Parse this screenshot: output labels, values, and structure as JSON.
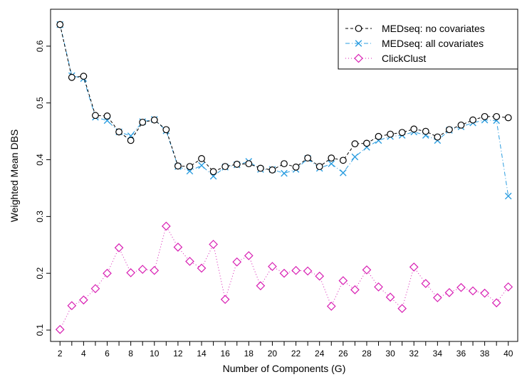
{
  "chart_data": {
    "type": "line",
    "title": "",
    "xlabel": "Number of Components (G)",
    "ylabel": "Weighted Mean DBS",
    "xlim": [
      1.2,
      40.8
    ],
    "ylim": [
      0.08,
      0.665
    ],
    "x_ticks": [
      2,
      3,
      4,
      5,
      6,
      7,
      8,
      9,
      10,
      11,
      12,
      13,
      14,
      15,
      16,
      17,
      18,
      19,
      20,
      21,
      22,
      23,
      24,
      25,
      26,
      27,
      28,
      29,
      30,
      31,
      32,
      33,
      34,
      35,
      36,
      37,
      38,
      39,
      40
    ],
    "x_tick_labels": [
      "2",
      "4",
      "6",
      "8",
      "10",
      "12",
      "14",
      "16",
      "18",
      "20",
      "22",
      "24",
      "26",
      "28",
      "30",
      "32",
      "34",
      "36",
      "38",
      "40"
    ],
    "y_ticks": [
      0.1,
      0.2,
      0.3,
      0.4,
      0.5,
      0.6
    ],
    "y_tick_labels": [
      "0.1",
      "0.2",
      "0.3",
      "0.4",
      "0.5",
      "0.6"
    ],
    "grid": false,
    "legend_position": "top-right",
    "x": [
      2,
      3,
      4,
      5,
      6,
      7,
      8,
      9,
      10,
      11,
      12,
      13,
      14,
      15,
      16,
      17,
      18,
      19,
      20,
      21,
      22,
      23,
      24,
      25,
      26,
      27,
      28,
      29,
      30,
      31,
      32,
      33,
      34,
      35,
      36,
      37,
      38,
      39,
      40
    ],
    "series": [
      {
        "name": "MEDseq: no covariates",
        "color": "#000000",
        "marker": "circle",
        "line": "dashed",
        "values": [
          0.638,
          0.545,
          0.547,
          0.478,
          0.477,
          0.449,
          0.434,
          0.466,
          0.47,
          0.453,
          0.389,
          0.388,
          0.402,
          0.379,
          0.388,
          0.392,
          0.393,
          0.385,
          0.382,
          0.393,
          0.387,
          0.403,
          0.388,
          0.403,
          0.399,
          0.428,
          0.429,
          0.441,
          0.445,
          0.448,
          0.454,
          0.45,
          0.44,
          0.453,
          0.461,
          0.47,
          0.476,
          0.476,
          0.474
        ]
      },
      {
        "name": "MEDseq: all covariates",
        "color": "#2b9de0",
        "marker": "cross",
        "line": "dashdot",
        "values": [
          0.638,
          0.548,
          0.543,
          0.475,
          0.469,
          0.449,
          0.442,
          0.467,
          0.471,
          0.451,
          0.388,
          0.38,
          0.39,
          0.371,
          0.387,
          0.391,
          0.397,
          0.383,
          0.383,
          0.376,
          0.383,
          0.402,
          0.385,
          0.393,
          0.377,
          0.405,
          0.422,
          0.434,
          0.441,
          0.443,
          0.449,
          0.443,
          0.434,
          0.452,
          0.458,
          0.465,
          0.47,
          0.469,
          0.336
        ]
      },
      {
        "name": "ClickClust",
        "color": "#d81fb3",
        "marker": "diamond",
        "line": "dotted",
        "values": [
          0.101,
          0.143,
          0.153,
          0.173,
          0.2,
          0.245,
          0.201,
          0.207,
          0.205,
          0.283,
          0.246,
          0.221,
          0.209,
          0.251,
          0.154,
          0.22,
          0.231,
          0.178,
          0.212,
          0.2,
          0.205,
          0.204,
          0.195,
          0.142,
          0.187,
          0.171,
          0.206,
          0.176,
          0.158,
          0.138,
          0.211,
          0.182,
          0.157,
          0.166,
          0.175,
          0.169,
          0.165,
          0.148,
          0.176
        ]
      }
    ]
  }
}
